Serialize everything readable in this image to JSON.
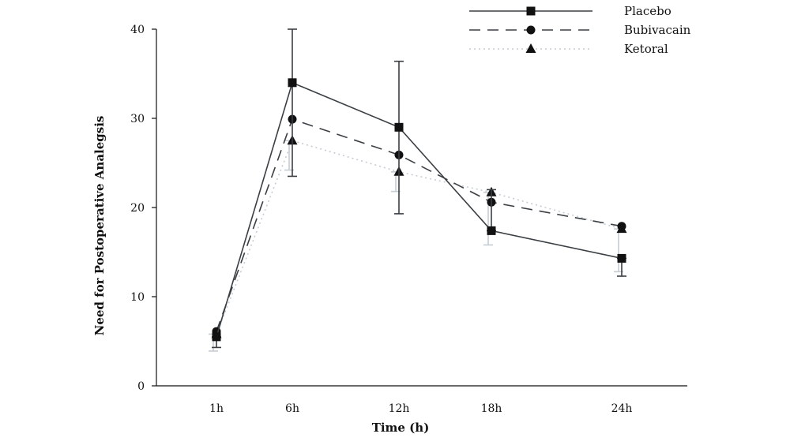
{
  "chart_data": {
    "type": "line",
    "xlabel": "Time (h)",
    "ylabel": "Need for Postoperative Analegsis",
    "categories": [
      "1h",
      "6h",
      "12h",
      "18h",
      "24h"
    ],
    "ylim": [
      0,
      40
    ],
    "yticks": [
      0,
      10,
      20,
      30,
      40
    ],
    "grid": false,
    "legend_position": "top-right",
    "series": [
      {
        "name": "Placebo",
        "marker": "square",
        "line_style": "solid",
        "color": "#3a3f44",
        "values": [
          5.5,
          34,
          29,
          17.4,
          14.3
        ],
        "error_lower": [
          4.3,
          23.5,
          19.3,
          17.4,
          12.3
        ],
        "error_upper": [
          5.5,
          40,
          36.4,
          22,
          14.3
        ]
      },
      {
        "name": "Bubivacain",
        "marker": "circle",
        "line_style": "dashed",
        "color": "#3a3f44",
        "values": [
          6.1,
          29.9,
          25.9,
          20.6,
          17.9
        ],
        "error_lower": [
          6.1,
          29.9,
          25.9,
          20.6,
          17.9
        ],
        "error_upper": [
          6.1,
          29.9,
          25.9,
          20.6,
          17.9
        ]
      },
      {
        "name": "Ketoral",
        "marker": "triangle",
        "line_style": "dotted",
        "color": "#c5ccd2",
        "values": [
          5.8,
          27.5,
          24,
          21.7,
          17.6
        ],
        "error_lower": [
          3.9,
          24.2,
          21.8,
          15.8,
          12.8
        ],
        "error_upper": [
          5.8,
          27.5,
          24,
          21.7,
          17.6
        ]
      }
    ]
  }
}
